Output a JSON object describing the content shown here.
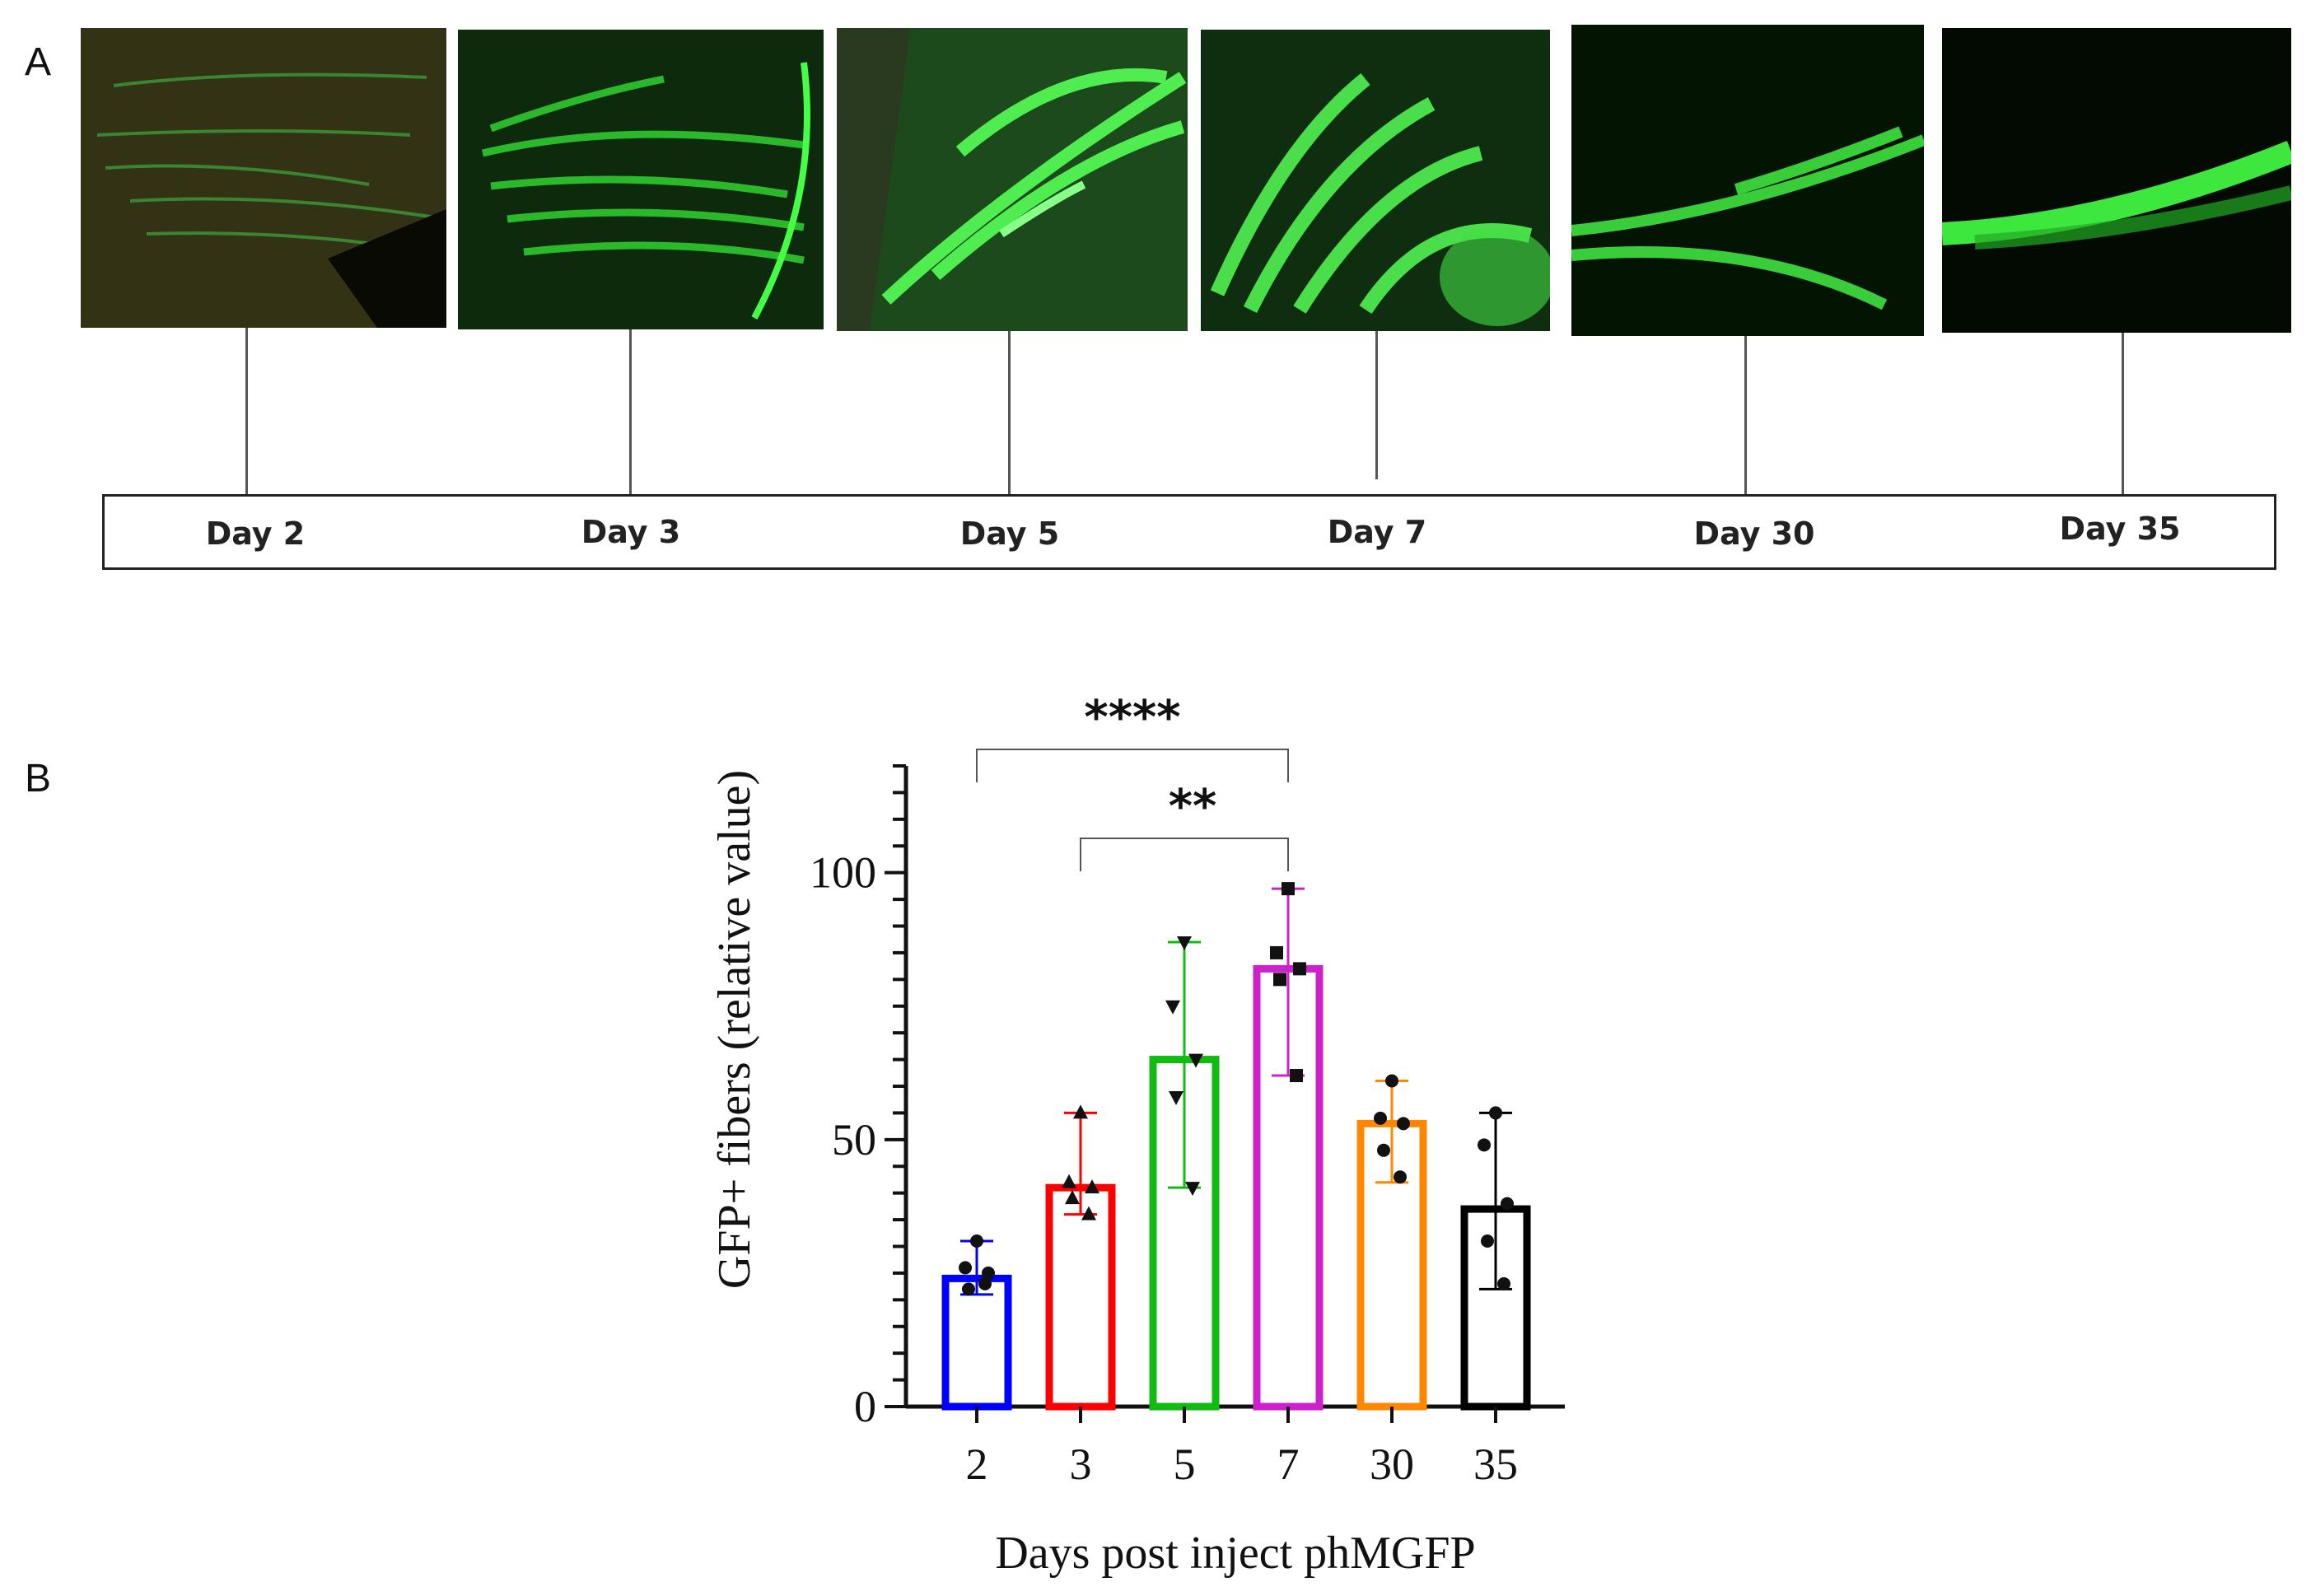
{
  "panels": {
    "a": "A",
    "b": "B"
  },
  "timeline": {
    "days": [
      "Day 2",
      "Day 3",
      "Day 5",
      "Day 7",
      "Day 30",
      "Day 35"
    ]
  },
  "colors": {
    "fluorescence": "#2cff2c",
    "background_day2": "#2a2a14",
    "axis": "#111111"
  },
  "chart_data": {
    "type": "bar",
    "xlabel": "Days post inject phMGFP",
    "ylabel": "GFP+ fibers (relative value)",
    "ylim": [
      0,
      120
    ],
    "yticks": [
      0,
      50,
      100
    ],
    "categories": [
      "2",
      "3",
      "5",
      "7",
      "30",
      "35"
    ],
    "series": [
      {
        "category": "2",
        "mean": 24,
        "err_low": 21,
        "err_high": 31,
        "color": "#0000ff",
        "marker": "circle",
        "points": [
          31,
          26,
          25,
          22,
          23
        ]
      },
      {
        "category": "3",
        "mean": 41,
        "err_low": 36,
        "err_high": 55,
        "color": "#ff0000",
        "marker": "triangle-up",
        "points": [
          55,
          42,
          41,
          39,
          36
        ]
      },
      {
        "category": "5",
        "mean": 65,
        "err_low": 41,
        "err_high": 87,
        "color": "#11bb11",
        "marker": "triangle-down",
        "points": [
          87,
          75,
          65,
          58,
          41
        ]
      },
      {
        "category": "7",
        "mean": 82,
        "err_low": 62,
        "err_high": 97,
        "color": "#cc22cc",
        "marker": "square",
        "points": [
          97,
          85,
          82,
          80,
          62
        ]
      },
      {
        "category": "30",
        "mean": 53,
        "err_low": 42,
        "err_high": 61,
        "color": "#ff8800",
        "marker": "circle",
        "points": [
          61,
          54,
          53,
          48,
          43
        ]
      },
      {
        "category": "35",
        "mean": 37,
        "err_low": 22,
        "err_high": 55,
        "color": "#000000",
        "marker": "circle",
        "points": [
          55,
          49,
          38,
          31,
          23
        ]
      }
    ],
    "significance": [
      {
        "from": "2",
        "to": "7",
        "label": "****"
      },
      {
        "from": "3",
        "to": "7",
        "label": "**"
      }
    ]
  }
}
